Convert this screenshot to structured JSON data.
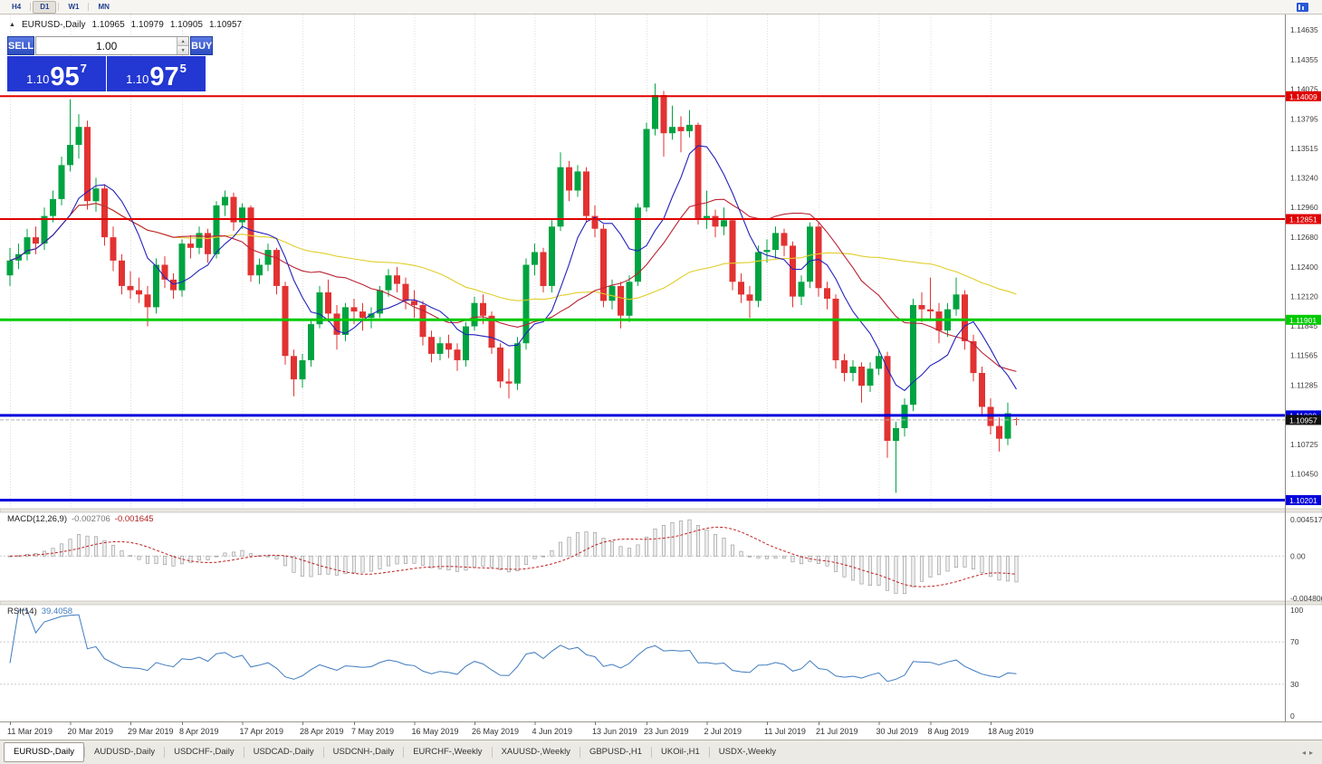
{
  "toolbar": {
    "timeframes": [
      "H4",
      "D1",
      "W1",
      "MN"
    ],
    "active_timeframe": "D1"
  },
  "chart_header": {
    "collapse_icon": "▲",
    "symbol": "EURUSD-,Daily",
    "open": "1.10965",
    "high": "1.10979",
    "low": "1.10905",
    "close": "1.10957"
  },
  "trade_panel": {
    "sell_label": "SELL",
    "buy_label": "BUY",
    "volume": "1.00",
    "sell_price": {
      "prefix": "1.10",
      "big": "95",
      "sup": "7"
    },
    "buy_price": {
      "prefix": "1.10",
      "big": "97",
      "sup": "5"
    }
  },
  "indicators": {
    "macd": {
      "title": "MACD(12,26,9)",
      "value_main": "-0.002706",
      "value_signal": "-0.001645",
      "axis": [
        "0.004517",
        "0.00",
        "-0.004806"
      ]
    },
    "rsi": {
      "title": "RSI(14)",
      "value": "39.4058",
      "axis": [
        "100",
        "70",
        "30",
        "0"
      ]
    }
  },
  "tabs": {
    "items": [
      "EURUSD-,Daily",
      "AUDUSD-,Daily",
      "USDCHF-,Daily",
      "USDCAD-,Daily",
      "USDCNH-,Daily",
      "EURCHF-,Weekly",
      "XAUUSD-,Weekly",
      "GBPUSD-,H1",
      "UKOil-,H1",
      "USDX-,Weekly"
    ],
    "active_index": 0,
    "scroll_left": "◂",
    "scroll_right": "▸"
  },
  "chart_data": {
    "type": "candlestick",
    "symbol": "EURUSD-",
    "timeframe": "Daily",
    "current_bid": 1.10957,
    "price_axis_ticks": [
      "1.14635",
      "1.14355",
      "1.14075",
      "1.13795",
      "1.13515",
      "1.13240",
      "1.12960",
      "1.12680",
      "1.12400",
      "1.12120",
      "1.11845",
      "1.11565",
      "1.11285",
      "1.10725",
      "1.10450"
    ],
    "hlines": [
      {
        "price": 1.14009,
        "label": "1.14009",
        "color": "#e00000",
        "width": 2
      },
      {
        "price": 1.12851,
        "label": "1.12851",
        "color": "#e00000",
        "width": 2
      },
      {
        "price": 1.11901,
        "label": "1.11901",
        "color": "#00ca00",
        "width": 3
      },
      {
        "price": 1.11,
        "label": "1.11000",
        "color": "#0000dc",
        "width": 3
      },
      {
        "price": 1.10201,
        "label": "1.10201",
        "color": "#0000dc",
        "width": 3
      }
    ],
    "moving_averages": [
      {
        "period": 45,
        "color": "#e0ce2a"
      },
      {
        "period": 20,
        "color": "#bb2233"
      },
      {
        "period": 8,
        "color": "#2222bb"
      }
    ],
    "macd_params": {
      "fast": 12,
      "slow": 26,
      "signal": 9
    },
    "rsi_params": {
      "period": 14,
      "levels": [
        70,
        30
      ]
    },
    "colors": {
      "up": "#00a341",
      "down": "#e23232",
      "rsi_line": "#3f7bbf",
      "macd_signal": "#c02020",
      "macd_bar_fill": "#f0f0f0",
      "macd_bar_stroke": "#a0a0a0"
    },
    "date_labels": [
      {
        "index": 0,
        "text": "11 Mar 2019"
      },
      {
        "index": 7,
        "text": "20 Mar 2019"
      },
      {
        "index": 14,
        "text": "29 Mar 2019"
      },
      {
        "index": 20,
        "text": "8 Apr 2019"
      },
      {
        "index": 27,
        "text": "17 Apr 2019"
      },
      {
        "index": 34,
        "text": "28 Apr 2019"
      },
      {
        "index": 40,
        "text": "7 May 2019"
      },
      {
        "index": 47,
        "text": "16 May 2019"
      },
      {
        "index": 54,
        "text": "26 May 2019"
      },
      {
        "index": 61,
        "text": "4 Jun 2019"
      },
      {
        "index": 68,
        "text": "13 Jun 2019"
      },
      {
        "index": 74,
        "text": "23 Jun 2019"
      },
      {
        "index": 81,
        "text": "2 Jul 2019"
      },
      {
        "index": 88,
        "text": "11 Jul 2019"
      },
      {
        "index": 94,
        "text": "21 Jul 2019"
      },
      {
        "index": 101,
        "text": "30 Jul 2019"
      },
      {
        "index": 107,
        "text": "8 Aug 2019"
      },
      {
        "index": 114,
        "text": "18 Aug 2019"
      }
    ],
    "candles": [
      [
        1.1232,
        1.1258,
        1.1222,
        1.1246
      ],
      [
        1.1246,
        1.1262,
        1.1238,
        1.1252
      ],
      [
        1.1252,
        1.1276,
        1.1246,
        1.1268
      ],
      [
        1.1268,
        1.1278,
        1.1252,
        1.1262
      ],
      [
        1.1262,
        1.1296,
        1.1256,
        1.1288
      ],
      [
        1.1288,
        1.1312,
        1.1282,
        1.1304
      ],
      [
        1.1304,
        1.1344,
        1.1298,
        1.1336
      ],
      [
        1.1336,
        1.1398,
        1.133,
        1.1355
      ],
      [
        1.1355,
        1.1384,
        1.1342,
        1.1372
      ],
      [
        1.1372,
        1.1378,
        1.1294,
        1.1302
      ],
      [
        1.1302,
        1.1324,
        1.1292,
        1.1314
      ],
      [
        1.1314,
        1.1318,
        1.126,
        1.1268
      ],
      [
        1.1268,
        1.1278,
        1.1236,
        1.1246
      ],
      [
        1.1246,
        1.1252,
        1.1214,
        1.1222
      ],
      [
        1.1222,
        1.1236,
        1.121,
        1.1218
      ],
      [
        1.1218,
        1.123,
        1.1206,
        1.1214
      ],
      [
        1.1214,
        1.1222,
        1.1184,
        1.1202
      ],
      [
        1.1202,
        1.1248,
        1.1196,
        1.1242
      ],
      [
        1.1242,
        1.125,
        1.122,
        1.1228
      ],
      [
        1.1228,
        1.1234,
        1.121,
        1.1218
      ],
      [
        1.1218,
        1.1266,
        1.1212,
        1.1262
      ],
      [
        1.1262,
        1.127,
        1.1248,
        1.1258
      ],
      [
        1.1258,
        1.1278,
        1.1252,
        1.1272
      ],
      [
        1.1272,
        1.1276,
        1.1244,
        1.1252
      ],
      [
        1.1252,
        1.1302,
        1.1248,
        1.1298
      ],
      [
        1.1298,
        1.1312,
        1.1288,
        1.1306
      ],
      [
        1.1306,
        1.131,
        1.1274,
        1.1282
      ],
      [
        1.1282,
        1.13,
        1.1276,
        1.1296
      ],
      [
        1.1296,
        1.1298,
        1.1226,
        1.1232
      ],
      [
        1.1232,
        1.1248,
        1.1224,
        1.1242
      ],
      [
        1.1242,
        1.1262,
        1.1236,
        1.1256
      ],
      [
        1.1256,
        1.1258,
        1.1214,
        1.1222
      ],
      [
        1.1222,
        1.1226,
        1.1148,
        1.1156
      ],
      [
        1.1156,
        1.1162,
        1.1118,
        1.1134
      ],
      [
        1.1134,
        1.1158,
        1.1126,
        1.1152
      ],
      [
        1.1152,
        1.119,
        1.1146,
        1.1186
      ],
      [
        1.1186,
        1.1222,
        1.1182,
        1.1216
      ],
      [
        1.1216,
        1.1228,
        1.1188,
        1.1196
      ],
      [
        1.1196,
        1.1204,
        1.1162,
        1.1176
      ],
      [
        1.1176,
        1.1206,
        1.117,
        1.1202
      ],
      [
        1.1202,
        1.121,
        1.1186,
        1.1198
      ],
      [
        1.1198,
        1.1206,
        1.118,
        1.1192
      ],
      [
        1.1192,
        1.1202,
        1.1182,
        1.1196
      ],
      [
        1.1196,
        1.1222,
        1.1192,
        1.1218
      ],
      [
        1.1218,
        1.1238,
        1.1212,
        1.1232
      ],
      [
        1.1232,
        1.124,
        1.1216,
        1.1224
      ],
      [
        1.1224,
        1.123,
        1.12,
        1.1208
      ],
      [
        1.1208,
        1.1218,
        1.1192,
        1.1204
      ],
      [
        1.1204,
        1.1208,
        1.1166,
        1.1174
      ],
      [
        1.1174,
        1.118,
        1.115,
        1.1158
      ],
      [
        1.1158,
        1.1174,
        1.1152,
        1.1168
      ],
      [
        1.1168,
        1.1176,
        1.1154,
        1.1162
      ],
      [
        1.1162,
        1.1168,
        1.1142,
        1.1152
      ],
      [
        1.1152,
        1.1188,
        1.1146,
        1.1184
      ],
      [
        1.1184,
        1.1212,
        1.118,
        1.1206
      ],
      [
        1.1206,
        1.1214,
        1.1186,
        1.1194
      ],
      [
        1.1194,
        1.1198,
        1.1158,
        1.1164
      ],
      [
        1.1164,
        1.1168,
        1.1126,
        1.1132
      ],
      [
        1.1132,
        1.1144,
        1.1116,
        1.113
      ],
      [
        1.113,
        1.1174,
        1.1124,
        1.1168
      ],
      [
        1.1168,
        1.1248,
        1.1162,
        1.1242
      ],
      [
        1.1242,
        1.1262,
        1.1232,
        1.1254
      ],
      [
        1.1254,
        1.1258,
        1.1216,
        1.1222
      ],
      [
        1.1222,
        1.1284,
        1.1216,
        1.1278
      ],
      [
        1.1278,
        1.1348,
        1.1274,
        1.1334
      ],
      [
        1.1334,
        1.134,
        1.1302,
        1.1312
      ],
      [
        1.1312,
        1.1336,
        1.1306,
        1.133
      ],
      [
        1.133,
        1.1334,
        1.1282,
        1.1288
      ],
      [
        1.1288,
        1.1298,
        1.1268,
        1.1276
      ],
      [
        1.1276,
        1.128,
        1.1202,
        1.1208
      ],
      [
        1.1208,
        1.1228,
        1.12,
        1.1222
      ],
      [
        1.1222,
        1.1226,
        1.1182,
        1.1194
      ],
      [
        1.1194,
        1.1232,
        1.1188,
        1.1226
      ],
      [
        1.1226,
        1.13,
        1.1222,
        1.1296
      ],
      [
        1.1296,
        1.1376,
        1.1292,
        1.137
      ],
      [
        1.137,
        1.1413,
        1.1364,
        1.1402
      ],
      [
        1.1402,
        1.1406,
        1.1344,
        1.1366
      ],
      [
        1.1366,
        1.1392,
        1.136,
        1.1372
      ],
      [
        1.1372,
        1.1382,
        1.1348,
        1.1368
      ],
      [
        1.1368,
        1.1388,
        1.1362,
        1.1374
      ],
      [
        1.1374,
        1.1376,
        1.128,
        1.1286
      ],
      [
        1.1286,
        1.1312,
        1.1276,
        1.1288
      ],
      [
        1.1288,
        1.1294,
        1.1268,
        1.1278
      ],
      [
        1.1278,
        1.1296,
        1.127,
        1.1284
      ],
      [
        1.1284,
        1.1286,
        1.1218,
        1.1226
      ],
      [
        1.1226,
        1.1234,
        1.1206,
        1.1214
      ],
      [
        1.1214,
        1.1222,
        1.1192,
        1.1208
      ],
      [
        1.1208,
        1.126,
        1.1202,
        1.1254
      ],
      [
        1.1254,
        1.1266,
        1.1244,
        1.1256
      ],
      [
        1.1256,
        1.1278,
        1.1248,
        1.1272
      ],
      [
        1.1272,
        1.1276,
        1.125,
        1.126
      ],
      [
        1.126,
        1.1264,
        1.1202,
        1.1212
      ],
      [
        1.1212,
        1.1232,
        1.1204,
        1.1226
      ],
      [
        1.1226,
        1.1282,
        1.122,
        1.1278
      ],
      [
        1.1278,
        1.1282,
        1.1212,
        1.122
      ],
      [
        1.122,
        1.1226,
        1.12,
        1.121
      ],
      [
        1.121,
        1.1214,
        1.1144,
        1.1152
      ],
      [
        1.1152,
        1.1158,
        1.1132,
        1.114
      ],
      [
        1.114,
        1.1152,
        1.1132,
        1.1146
      ],
      [
        1.1146,
        1.115,
        1.1112,
        1.1128
      ],
      [
        1.1128,
        1.115,
        1.1122,
        1.1144
      ],
      [
        1.1144,
        1.1162,
        1.1138,
        1.1156
      ],
      [
        1.1156,
        1.116,
        1.106,
        1.1076
      ],
      [
        1.1076,
        1.1094,
        1.1027,
        1.1088
      ],
      [
        1.1088,
        1.1116,
        1.108,
        1.111
      ],
      [
        1.111,
        1.121,
        1.1104,
        1.1204
      ],
      [
        1.1204,
        1.1216,
        1.1188,
        1.12
      ],
      [
        1.12,
        1.123,
        1.119,
        1.1198
      ],
      [
        1.1198,
        1.1206,
        1.1168,
        1.118
      ],
      [
        1.118,
        1.1206,
        1.1174,
        1.12
      ],
      [
        1.12,
        1.123,
        1.1194,
        1.1214
      ],
      [
        1.1214,
        1.1218,
        1.1162,
        1.117
      ],
      [
        1.117,
        1.1176,
        1.1132,
        1.114
      ],
      [
        1.114,
        1.1146,
        1.11,
        1.1108
      ],
      [
        1.1108,
        1.1116,
        1.1082,
        1.109
      ],
      [
        1.109,
        1.1098,
        1.1066,
        1.1078
      ],
      [
        1.1078,
        1.1112,
        1.1072,
        1.1102
      ],
      [
        1.10965,
        1.10979,
        1.10905,
        1.10957
      ]
    ]
  }
}
